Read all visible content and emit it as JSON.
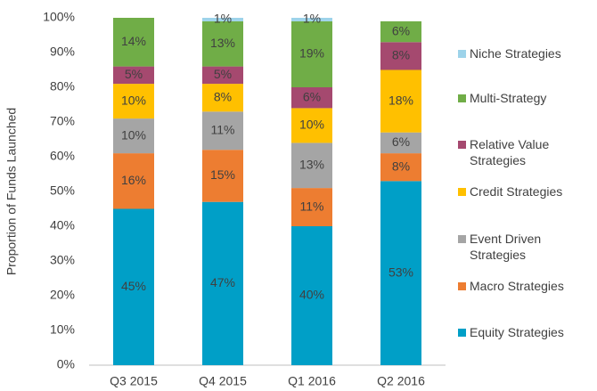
{
  "chart_data": {
    "type": "stacked_bar",
    "y_axis_label": "Proportion of Funds Launched",
    "categories": [
      "Q3 2015",
      "Q4 2015",
      "Q1 2016",
      "Q2 2016"
    ],
    "series": [
      {
        "name": "Equity Strategies",
        "color": "#009fc7",
        "values": [
          45,
          47,
          40,
          53
        ],
        "value_labels": [
          "45%",
          "47%",
          "40%",
          "53%"
        ]
      },
      {
        "name": "Macro Strategies",
        "color": "#ed7d31",
        "values": [
          16,
          15,
          11,
          8
        ],
        "value_labels": [
          "16%",
          "15%",
          "11%",
          "8%"
        ]
      },
      {
        "name": "Event Driven Strategies",
        "color": "#a5a5a5",
        "values": [
          10,
          11,
          13,
          6
        ],
        "value_labels": [
          "10%",
          "11%",
          "13%",
          "6%"
        ]
      },
      {
        "name": "Credit Strategies",
        "color": "#ffc000",
        "values": [
          10,
          8,
          10,
          18
        ],
        "value_labels": [
          "10%",
          "8%",
          "10%",
          "18%"
        ]
      },
      {
        "name": "Relative Value Strategies",
        "color": "#a5496f",
        "values": [
          5,
          5,
          6,
          8
        ],
        "value_labels": [
          "5%",
          "5%",
          "6%",
          "8%"
        ]
      },
      {
        "name": "Multi-Strategy",
        "color": "#70ad47",
        "values": [
          14,
          13,
          19,
          6
        ],
        "value_labels": [
          "14%",
          "13%",
          "19%",
          "6%"
        ]
      },
      {
        "name": "Niche Strategies",
        "color": "#9dd3ea",
        "values": [
          null,
          1,
          1,
          null
        ],
        "value_labels": [
          null,
          "1%",
          "1%",
          null
        ]
      }
    ],
    "ylim": [
      0,
      100
    ],
    "yticks": [
      {
        "value": 0,
        "label": "0%"
      },
      {
        "value": 10,
        "label": "10%"
      },
      {
        "value": 20,
        "label": "20%"
      },
      {
        "value": 30,
        "label": "30%"
      },
      {
        "value": 40,
        "label": "40%"
      },
      {
        "value": 50,
        "label": "50%"
      },
      {
        "value": 60,
        "label": "60%"
      },
      {
        "value": 70,
        "label": "70%"
      },
      {
        "value": 80,
        "label": "80%"
      },
      {
        "value": 90,
        "label": "90%"
      },
      {
        "value": 100,
        "label": "100%"
      }
    ],
    "legend": "right"
  }
}
